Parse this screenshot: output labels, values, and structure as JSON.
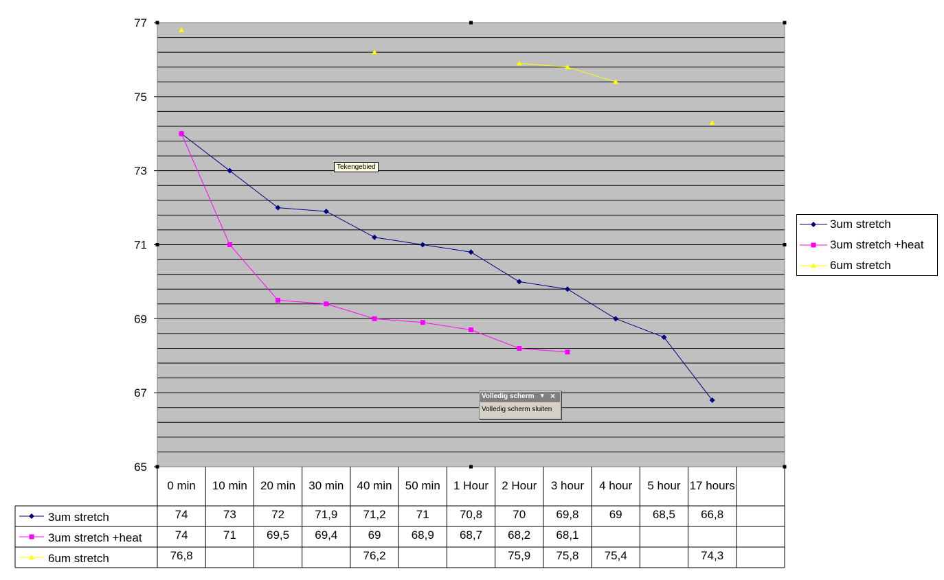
{
  "chart_data": {
    "type": "line",
    "categories": [
      "0 min",
      "10 min",
      "20 min",
      "30 min",
      "40 min",
      "50 min",
      "1 Hour",
      "2 Hour",
      "3 hour",
      "4 hour",
      "5 hour",
      "17 hours",
      ""
    ],
    "series": [
      {
        "name": "3um stretch",
        "color": "#000080",
        "marker": "diamond",
        "values": [
          74,
          73,
          72,
          71.9,
          71.2,
          71,
          70.8,
          70,
          69.8,
          69,
          68.5,
          66.8,
          null
        ],
        "labels": [
          "74",
          "73",
          "72",
          "71,9",
          "71,2",
          "71",
          "70,8",
          "70",
          "69,8",
          "69",
          "68,5",
          "66,8",
          ""
        ]
      },
      {
        "name": "3um stretch +heat",
        "color": "#ff00ff",
        "marker": "square",
        "values": [
          74,
          71,
          69.5,
          69.4,
          69,
          68.9,
          68.7,
          68.2,
          68.1,
          null,
          null,
          null,
          null
        ],
        "labels": [
          "74",
          "71",
          "69,5",
          "69,4",
          "69",
          "68,9",
          "68,7",
          "68,2",
          "68,1",
          "",
          "",
          "",
          ""
        ]
      },
      {
        "name": "6um stretch",
        "color": "#ffff00",
        "marker": "triangle",
        "values": [
          76.8,
          null,
          null,
          null,
          76.2,
          null,
          null,
          75.9,
          75.8,
          75.4,
          null,
          74.3,
          null
        ],
        "labels": [
          "76,8",
          "",
          "",
          "",
          "76,2",
          "",
          "",
          "75,9",
          "75,8",
          "75,4",
          "",
          "74,3",
          ""
        ]
      }
    ],
    "ylim": [
      65,
      77
    ],
    "yticks": [
      77,
      75,
      73,
      71,
      69,
      67,
      65
    ],
    "ytick_labels": [
      "77",
      "75",
      "73",
      "71",
      "69",
      "67",
      "65"
    ],
    "ygrid_step": 0.4,
    "grid": true,
    "plot_background": "#c0c0c0",
    "data_table": true,
    "legend": "right"
  },
  "tooltip": {
    "text": "Tekengebied"
  },
  "fullscreen_toolbar": {
    "title": "Volledig scherm",
    "button": "Volledig scherm sluiten",
    "dropdown": "▾",
    "close": "×"
  }
}
